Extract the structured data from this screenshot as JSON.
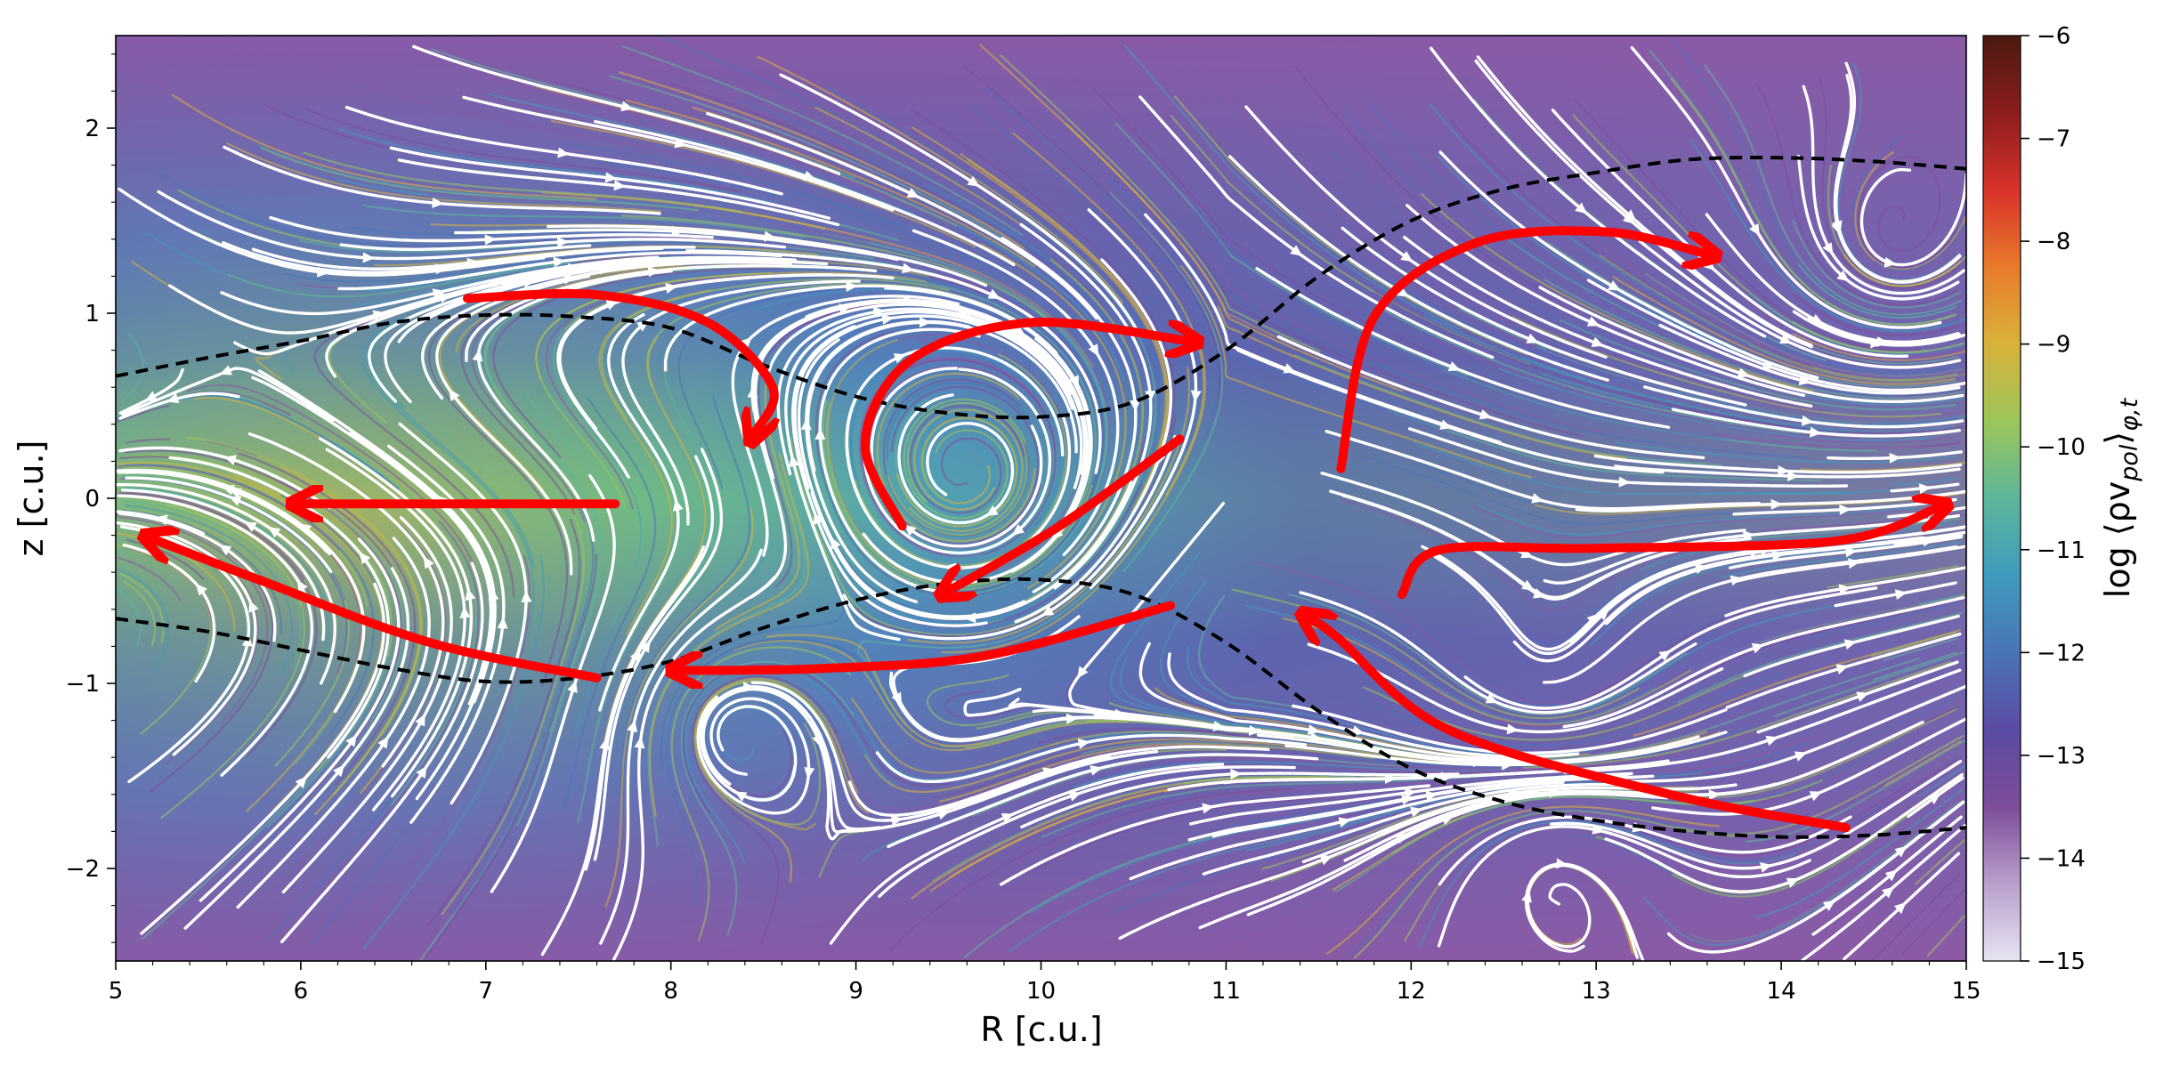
{
  "chart_data": {
    "type": "streamplot",
    "title": "",
    "xlabel": "R [c.u.]",
    "ylabel": "z [c.u.]",
    "xlim": [
      5,
      15
    ],
    "ylim": [
      -2.5,
      2.5
    ],
    "xticks": [
      5,
      6,
      7,
      8,
      9,
      10,
      11,
      12,
      13,
      14,
      15
    ],
    "xtick_labels": [
      "5",
      "6",
      "7",
      "8",
      "9",
      "10",
      "11",
      "12",
      "13",
      "14",
      "15"
    ],
    "yticks": [
      -2,
      -1,
      0,
      1,
      2
    ],
    "ytick_labels": [
      "−2",
      "−1",
      "0",
      "1",
      "2"
    ],
    "grid": false,
    "colorbar": {
      "label": "log ⟨ρv_pol⟩_φ,t",
      "label_main": "log ⟨ρv",
      "label_sub1": "pol",
      "label_mid": "⟩",
      "label_sub2": "φ,t",
      "range": [
        -15,
        -6
      ],
      "ticks": [
        -15,
        -14,
        -13,
        -12,
        -11,
        -10,
        -9,
        -8,
        -7,
        -6
      ],
      "tick_labels": [
        "−15",
        "−14",
        "−13",
        "−12",
        "−11",
        "−10",
        "−9",
        "−8",
        "−7",
        "−6"
      ],
      "colormap": [
        "#e8e4f2",
        "#b99fcc",
        "#7d4d9a",
        "#5b4ba4",
        "#4a74b8",
        "#3f9bbd",
        "#5cb69a",
        "#9cc65a",
        "#d9b23a",
        "#e97a2b",
        "#d8322a",
        "#8c1d1d",
        "#4a1a10"
      ]
    },
    "boundary_curves": [
      {
        "style": "dashed",
        "color": "#000000",
        "points": [
          [
            5,
            0.66
          ],
          [
            5.5,
            0.76
          ],
          [
            6,
            0.85
          ],
          [
            6.5,
            0.95
          ],
          [
            7,
            0.99
          ],
          [
            7.5,
            0.98
          ],
          [
            8,
            0.92
          ],
          [
            8.5,
            0.72
          ],
          [
            9,
            0.55
          ],
          [
            9.5,
            0.46
          ],
          [
            10,
            0.44
          ],
          [
            10.5,
            0.52
          ],
          [
            11,
            0.8
          ],
          [
            11.5,
            1.2
          ],
          [
            12,
            1.5
          ],
          [
            12.5,
            1.67
          ],
          [
            13,
            1.76
          ],
          [
            13.5,
            1.83
          ],
          [
            14,
            1.84
          ],
          [
            14.5,
            1.82
          ],
          [
            15,
            1.78
          ]
        ]
      },
      {
        "style": "dashed",
        "color": "#000000",
        "points": [
          [
            5,
            -0.65
          ],
          [
            5.5,
            -0.72
          ],
          [
            6,
            -0.82
          ],
          [
            6.5,
            -0.92
          ],
          [
            7,
            -0.99
          ],
          [
            7.5,
            -0.97
          ],
          [
            8,
            -0.88
          ],
          [
            8.5,
            -0.7
          ],
          [
            9,
            -0.55
          ],
          [
            9.5,
            -0.46
          ],
          [
            10,
            -0.44
          ],
          [
            10.5,
            -0.52
          ],
          [
            11,
            -0.78
          ],
          [
            11.5,
            -1.15
          ],
          [
            12,
            -1.46
          ],
          [
            12.5,
            -1.64
          ],
          [
            13,
            -1.74
          ],
          [
            13.5,
            -1.8
          ],
          [
            14,
            -1.83
          ],
          [
            14.5,
            -1.82
          ],
          [
            15,
            -1.78
          ]
        ]
      }
    ],
    "flow_arrows": [
      {
        "color": "#ff0000",
        "points": [
          [
            6.9,
            1.08
          ],
          [
            7.6,
            1.1
          ],
          [
            8.2,
            0.95
          ],
          [
            8.55,
            0.6
          ],
          [
            8.45,
            0.35
          ]
        ]
      },
      {
        "color": "#ff0000",
        "points": [
          [
            7.7,
            -0.03
          ],
          [
            6.9,
            -0.03
          ],
          [
            6.0,
            -0.03
          ]
        ]
      },
      {
        "color": "#ff0000",
        "points": [
          [
            7.6,
            -0.97
          ],
          [
            6.7,
            -0.78
          ],
          [
            5.8,
            -0.45
          ],
          [
            5.2,
            -0.22
          ]
        ]
      },
      {
        "color": "#ff0000",
        "points": [
          [
            10.7,
            -0.58
          ],
          [
            9.7,
            -0.85
          ],
          [
            8.8,
            -0.92
          ],
          [
            8.05,
            -0.93
          ]
        ]
      },
      {
        "color": "#ff0000",
        "points": [
          [
            9.25,
            -0.15
          ],
          [
            9.05,
            0.3
          ],
          [
            9.3,
            0.75
          ],
          [
            9.95,
            0.95
          ],
          [
            10.8,
            0.85
          ]
        ]
      },
      {
        "color": "#ff0000",
        "points": [
          [
            10.75,
            0.32
          ],
          [
            10.1,
            -0.15
          ],
          [
            9.5,
            -0.5
          ]
        ]
      },
      {
        "color": "#ff0000",
        "points": [
          [
            11.62,
            0.16
          ],
          [
            11.8,
            0.98
          ],
          [
            12.35,
            1.38
          ],
          [
            13.05,
            1.44
          ],
          [
            13.6,
            1.32
          ]
        ]
      },
      {
        "color": "#ff0000",
        "points": [
          [
            11.95,
            -0.52
          ],
          [
            12.15,
            -0.28
          ],
          [
            13.0,
            -0.27
          ],
          [
            14.3,
            -0.23
          ],
          [
            14.85,
            -0.05
          ]
        ]
      },
      {
        "color": "#ff0000",
        "points": [
          [
            14.35,
            -1.78
          ],
          [
            13.4,
            -1.6
          ],
          [
            12.2,
            -1.25
          ],
          [
            11.6,
            -0.75
          ],
          [
            11.45,
            -0.65
          ]
        ]
      }
    ],
    "vortices": [
      {
        "cx": 9.6,
        "cy": 0.1,
        "direction": "clockwise"
      },
      {
        "cx": 12.7,
        "cy": -0.95,
        "direction": "counterclockwise"
      },
      {
        "cx": 14.6,
        "cy": 1.35,
        "direction": "counterclockwise"
      },
      {
        "cx": 12.75,
        "cy": -2.0,
        "direction": "clockwise"
      },
      {
        "cx": 8.3,
        "cy": -1.25,
        "direction": "clockwise"
      }
    ]
  }
}
